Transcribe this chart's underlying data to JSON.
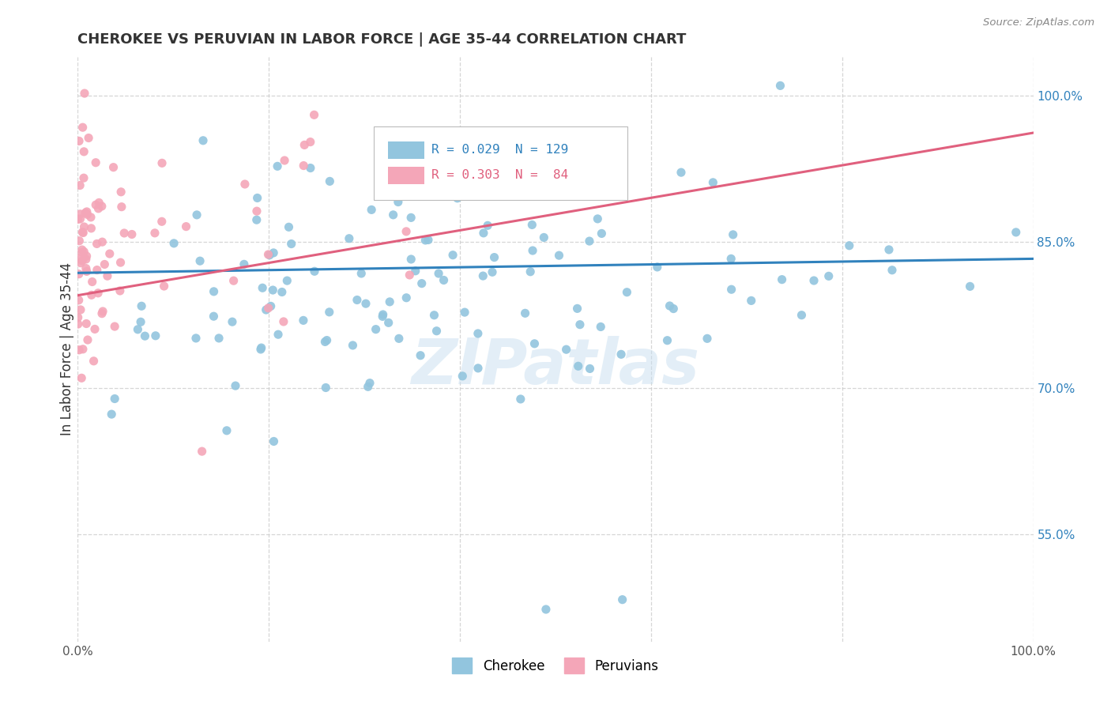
{
  "title": "CHEROKEE VS PERUVIAN IN LABOR FORCE | AGE 35-44 CORRELATION CHART",
  "source": "Source: ZipAtlas.com",
  "ylabel": "In Labor Force | Age 35-44",
  "xlim": [
    0.0,
    1.0
  ],
  "ylim": [
    0.44,
    1.04
  ],
  "ytick_vals": [
    0.55,
    0.7,
    0.85,
    1.0
  ],
  "ytick_labels": [
    "55.0%",
    "70.0%",
    "85.0%",
    "100.0%"
  ],
  "xtick_vals": [
    0.0,
    0.2,
    0.4,
    0.6,
    0.8,
    1.0
  ],
  "xtick_labels": [
    "0.0%",
    "",
    "",
    "",
    "",
    "100.0%"
  ],
  "watermark": "ZIPatlas",
  "legend_labels": [
    "Cherokee",
    "Peruvians"
  ],
  "cherokee_color": "#92c5de",
  "peruvian_color": "#f4a6b8",
  "cherokee_line_color": "#3182bd",
  "peruvian_line_color": "#e0607e",
  "right_tick_color": "#3182bd",
  "R_cherokee": 0.029,
  "N_cherokee": 129,
  "R_peruvian": 0.303,
  "N_peruvian": 84,
  "background_color": "#ffffff",
  "grid_color": "#cccccc",
  "title_color": "#333333",
  "source_color": "#888888",
  "ylabel_color": "#333333"
}
